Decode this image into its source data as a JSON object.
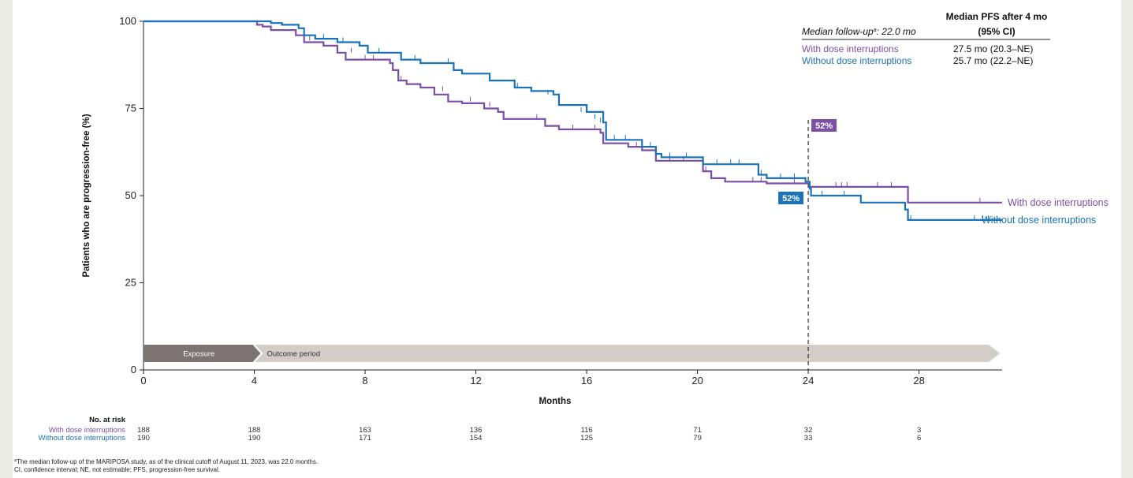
{
  "colors": {
    "with_dose": "#7b4fa6",
    "without_dose": "#1a73b8",
    "exposure_band": "#7d7472",
    "outcome_band": "#d3ccc7",
    "page_bg": "#ebebe6"
  },
  "chart_data": {
    "type": "line",
    "subtype": "kaplan-meier",
    "xlabel": "Months",
    "ylabel": "Patients who are progression-free (%)",
    "xlim": [
      0,
      31
    ],
    "ylim": [
      0,
      100
    ],
    "x_ticks": [
      "0",
      "4",
      "8",
      "12",
      "16",
      "20",
      "24",
      "28"
    ],
    "y_ticks": [
      "0",
      "25",
      "50",
      "75",
      "100"
    ],
    "grid": false,
    "reference_line_x": 24,
    "series": [
      {
        "name": "With dose interruptions",
        "key": "with_dose",
        "end_label": "With dose interruptions",
        "landmark_label": "52%",
        "steps": [
          [
            0,
            100
          ],
          [
            4.1,
            99
          ],
          [
            4.3,
            98.5
          ],
          [
            4.6,
            97.5
          ],
          [
            5.5,
            96
          ],
          [
            5.8,
            94
          ],
          [
            6.5,
            93
          ],
          [
            7,
            91
          ],
          [
            7.3,
            89
          ],
          [
            8,
            89
          ],
          [
            8.9,
            88
          ],
          [
            9,
            86
          ],
          [
            9.2,
            83
          ],
          [
            9.5,
            82
          ],
          [
            10,
            81
          ],
          [
            10.5,
            79
          ],
          [
            11,
            77
          ],
          [
            11.5,
            76.5
          ],
          [
            12.3,
            75
          ],
          [
            12.8,
            74
          ],
          [
            13,
            72
          ],
          [
            14,
            72
          ],
          [
            14.5,
            70
          ],
          [
            15,
            69
          ],
          [
            16,
            69
          ],
          [
            16.5,
            68
          ],
          [
            16.6,
            65
          ],
          [
            17.5,
            64
          ],
          [
            18,
            63
          ],
          [
            18.5,
            60
          ],
          [
            20,
            60
          ],
          [
            20.2,
            57
          ],
          [
            20.5,
            55
          ],
          [
            21,
            54
          ],
          [
            22,
            54
          ],
          [
            22.5,
            53.5
          ],
          [
            24,
            53.5
          ],
          [
            24.05,
            52.5
          ],
          [
            26,
            52.5
          ],
          [
            27.5,
            52.5
          ],
          [
            27.6,
            48
          ],
          [
            31,
            48
          ]
        ],
        "censor_marks": [
          [
            6,
            94.5
          ],
          [
            7.5,
            91
          ],
          [
            8,
            89
          ],
          [
            8.3,
            89
          ],
          [
            9.3,
            83
          ],
          [
            10.8,
            80
          ],
          [
            11.8,
            77
          ],
          [
            12.5,
            75.5
          ],
          [
            14.2,
            72
          ],
          [
            15.5,
            69
          ],
          [
            16.3,
            69
          ],
          [
            17.8,
            64
          ],
          [
            19,
            60
          ],
          [
            19.5,
            60
          ],
          [
            20.3,
            57
          ],
          [
            22,
            54
          ],
          [
            22.3,
            54
          ],
          [
            23.5,
            53.5
          ],
          [
            25,
            52.5
          ],
          [
            25.2,
            52.5
          ],
          [
            25.4,
            52.5
          ],
          [
            26.5,
            52.5
          ],
          [
            27,
            52.5
          ],
          [
            30.2,
            48
          ]
        ]
      },
      {
        "name": "Without dose interruptions",
        "key": "without_dose",
        "end_label": "Without dose interruptions",
        "landmark_label": "52%",
        "steps": [
          [
            0,
            100
          ],
          [
            4.6,
            99.5
          ],
          [
            5,
            99
          ],
          [
            5.6,
            98
          ],
          [
            5.8,
            96
          ],
          [
            6.2,
            95
          ],
          [
            7,
            94
          ],
          [
            7.8,
            93
          ],
          [
            8.1,
            91
          ],
          [
            9.3,
            89
          ],
          [
            10,
            88
          ],
          [
            11.2,
            86
          ],
          [
            11.5,
            85
          ],
          [
            12.5,
            83
          ],
          [
            13.4,
            81
          ],
          [
            14,
            80
          ],
          [
            14.8,
            79
          ],
          [
            15,
            76
          ],
          [
            16,
            74
          ],
          [
            16.6,
            71
          ],
          [
            16.7,
            66
          ],
          [
            17.5,
            66
          ],
          [
            18,
            64
          ],
          [
            18.5,
            62
          ],
          [
            18.7,
            61
          ],
          [
            20,
            61
          ],
          [
            20.2,
            59
          ],
          [
            22,
            59
          ],
          [
            22.2,
            56
          ],
          [
            22.5,
            55
          ],
          [
            23.8,
            55
          ],
          [
            23.9,
            54
          ],
          [
            24.05,
            52
          ],
          [
            24.1,
            50
          ],
          [
            25,
            50
          ],
          [
            25.9,
            48
          ],
          [
            27,
            48
          ],
          [
            27.5,
            46
          ],
          [
            27.6,
            43
          ],
          [
            31,
            43
          ]
        ],
        "censor_marks": [
          [
            6.5,
            95
          ],
          [
            7.2,
            94
          ],
          [
            8.5,
            91
          ],
          [
            9.8,
            89
          ],
          [
            11,
            88
          ],
          [
            13.5,
            81
          ],
          [
            14.6,
            79
          ],
          [
            15.8,
            74
          ],
          [
            16.3,
            72
          ],
          [
            16.5,
            71
          ],
          [
            17,
            66
          ],
          [
            17.4,
            66
          ],
          [
            18.3,
            64
          ],
          [
            19,
            61
          ],
          [
            19.6,
            61
          ],
          [
            20.7,
            59
          ],
          [
            21.2,
            59
          ],
          [
            21.5,
            59
          ],
          [
            22.3,
            56
          ],
          [
            23,
            55
          ],
          [
            23.5,
            55
          ],
          [
            23.9,
            54
          ],
          [
            24.5,
            50
          ],
          [
            25.3,
            50
          ],
          [
            27.7,
            43
          ],
          [
            30,
            43
          ],
          [
            30.3,
            43
          ],
          [
            30.5,
            43
          ]
        ]
      }
    ]
  },
  "legend": {
    "followup_label": "Median follow-up",
    "followup_sup": "a",
    "followup_value": ": 22.0 mo",
    "header_line1": "Median PFS after 4 mo",
    "header_line2": "(95% CI)",
    "rows": [
      {
        "label": "With dose interruptions",
        "value": "27.5 mo (20.3–NE)",
        "key": "with_dose"
      },
      {
        "label": "Without dose interruptions",
        "value": "25.7 mo (22.2–NE)",
        "key": "without_dose"
      }
    ]
  },
  "period_band": {
    "exposure_label": "Exposure",
    "outcome_label": "Outcome period"
  },
  "at_risk": {
    "title": "No. at risk",
    "rows": [
      {
        "label": "With dose interruptions",
        "key": "with_dose",
        "values": [
          "188",
          "188",
          "163",
          "136",
          "116",
          "71",
          "32",
          "3"
        ]
      },
      {
        "label": "Without dose interruptions",
        "key": "without_dose",
        "values": [
          "190",
          "190",
          "171",
          "154",
          "125",
          "79",
          "33",
          "6"
        ]
      }
    ]
  },
  "footnotes": {
    "line1_sup": "a",
    "line1": "The median follow-up of the MARIPOSA study, as of the clinical cutoff of August 11, 2023, was 22.0 months.",
    "line2": "CI, confidence interval; NE, not estimable; PFS, progression-free survival."
  }
}
